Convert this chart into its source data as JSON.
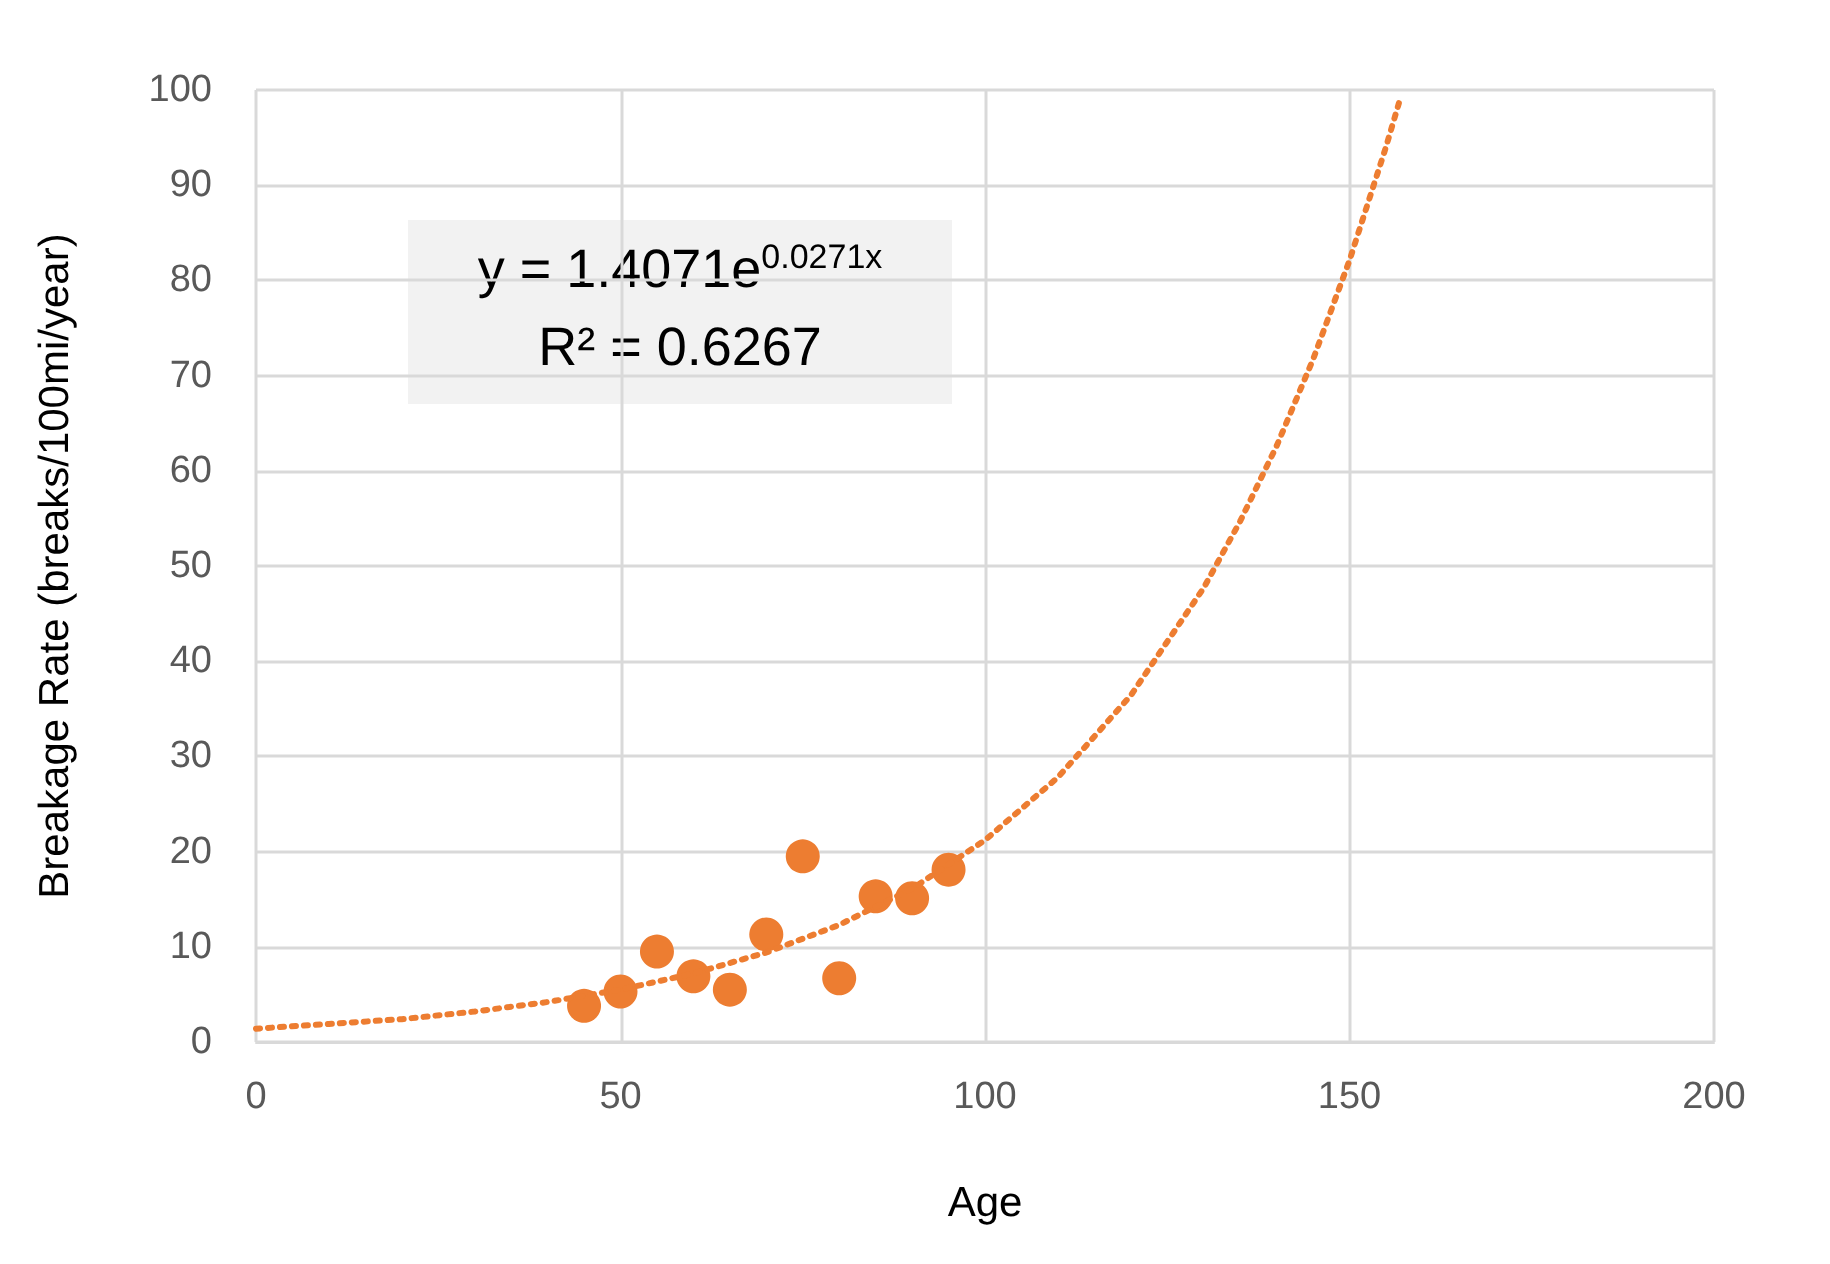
{
  "chart_data": {
    "type": "scatter",
    "xlabel": "Age",
    "ylabel": "Breakage Rate (breaks/100mi/year)",
    "xlim": [
      0,
      200
    ],
    "xticks": [
      0,
      50,
      100,
      150,
      200
    ],
    "ylim": [
      0,
      100
    ],
    "yticks": [
      0,
      10,
      20,
      30,
      40,
      50,
      60,
      70,
      80,
      90,
      100
    ],
    "grid": true,
    "marker": "circle",
    "series": [
      {
        "color": "#ed7d31",
        "x": [
          45,
          50,
          55,
          60,
          65,
          70,
          75,
          80,
          85,
          90,
          95
        ],
        "values": [
          3.8,
          5.3,
          9.5,
          6.9,
          5.5,
          11.3,
          19.5,
          6.7,
          15.3,
          15.1,
          18.1
        ]
      },
      {
        "type": "line",
        "color": "#ed7d31",
        "line_style": "dotted",
        "marker": "none",
        "x": [
          0,
          10,
          20,
          30,
          40,
          50,
          60,
          70,
          80,
          90,
          100,
          110,
          120,
          130,
          135,
          140,
          145,
          150,
          155,
          157
        ],
        "values": [
          1.4,
          1.9,
          2.4,
          3.2,
          4.2,
          5.5,
          7.2,
          9.4,
          12.3,
          16.1,
          21.2,
          27.8,
          36.4,
          47.7,
          54.7,
          62.6,
          71.7,
          82.1,
          94,
          99.2
        ]
      }
    ],
    "annotations": [
      "y = 1.4071e$^{0.0271x}$",
      "R² = 0.6267"
    ]
  }
}
